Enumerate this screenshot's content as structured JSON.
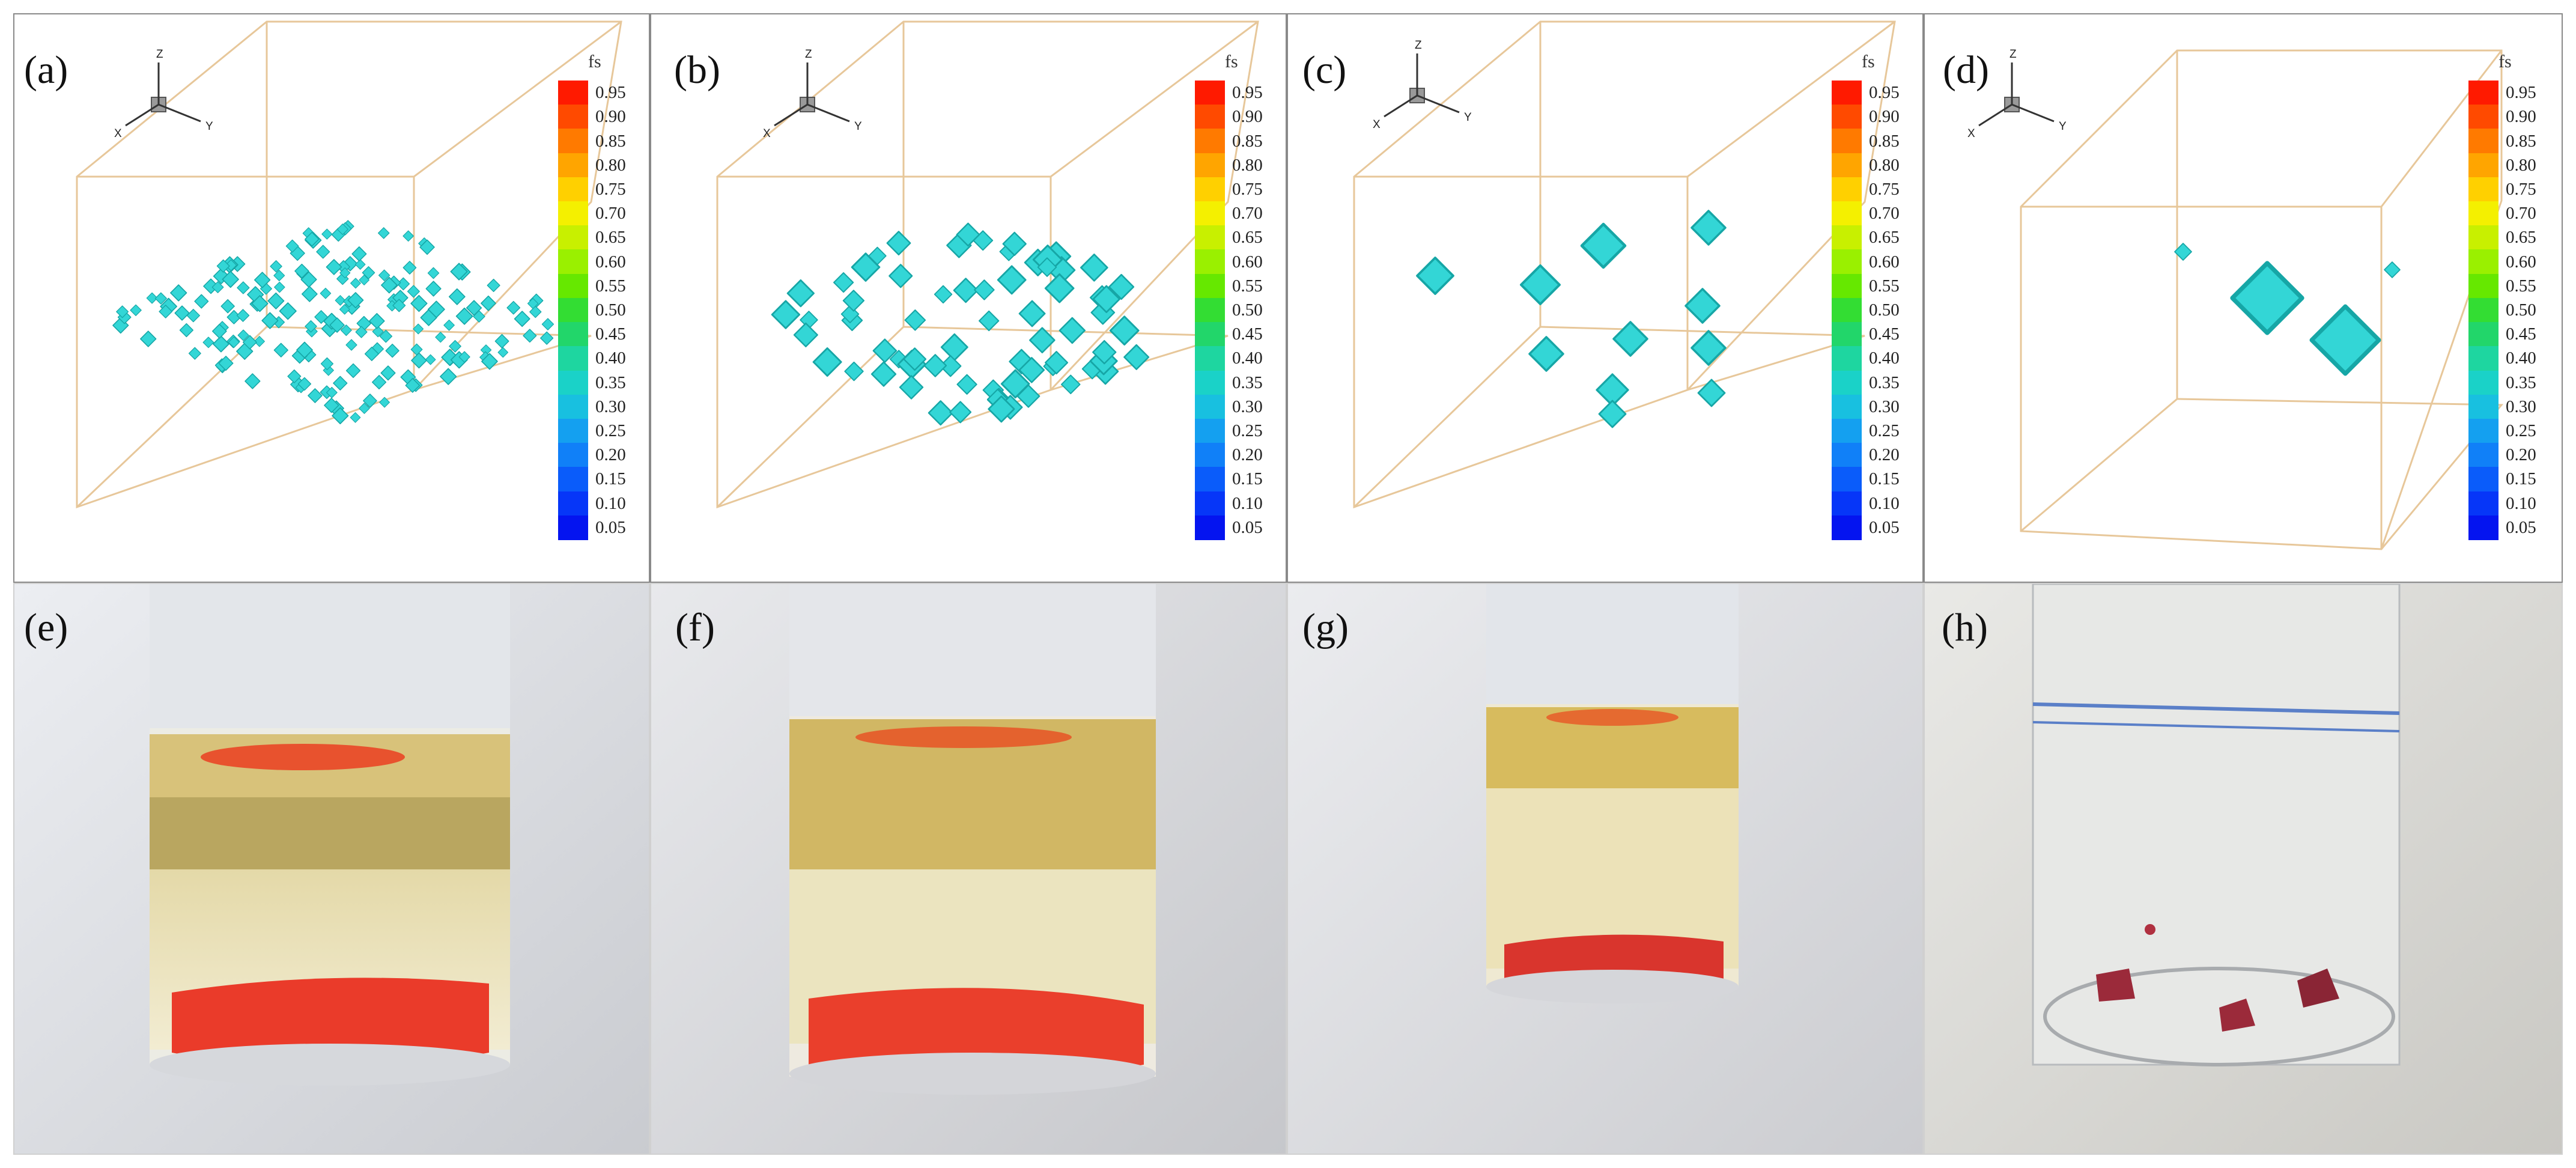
{
  "panels": {
    "a": {
      "label": "(a)"
    },
    "b": {
      "label": "(b)"
    },
    "c": {
      "label": "(c)"
    },
    "d": {
      "label": "(d)"
    },
    "e": {
      "label": "(e)"
    },
    "f": {
      "label": "(f)"
    },
    "g": {
      "label": "(g)"
    },
    "h": {
      "label": "(h)"
    }
  },
  "axes": {
    "x": "X",
    "y": "Y",
    "z": "Z"
  },
  "colorbar": {
    "title": "fs",
    "ticks": [
      "0.95",
      "0.90",
      "0.85",
      "0.80",
      "0.75",
      "0.70",
      "0.65",
      "0.60",
      "0.55",
      "0.50",
      "0.45",
      "0.40",
      "0.35",
      "0.30",
      "0.25",
      "0.20",
      "0.15",
      "0.10",
      "0.05"
    ],
    "colors_top_to_bottom": [
      "#ff1a00",
      "#ff4a00",
      "#ff7a00",
      "#ffa500",
      "#ffd000",
      "#f4f000",
      "#c8f000",
      "#9af000",
      "#66e800",
      "#33dd33",
      "#22d66a",
      "#1ed6a0",
      "#1ad2c8",
      "#18c0e0",
      "#14a0f0",
      "#1080f8",
      "#0a5cfa",
      "#0636f8",
      "#0414f0"
    ]
  },
  "colors": {
    "crystal": "#33d6d6",
    "crystal_edge": "#16a6a6",
    "box_line": "#e7c79a",
    "photo_crystal": "#e83a2a"
  }
}
